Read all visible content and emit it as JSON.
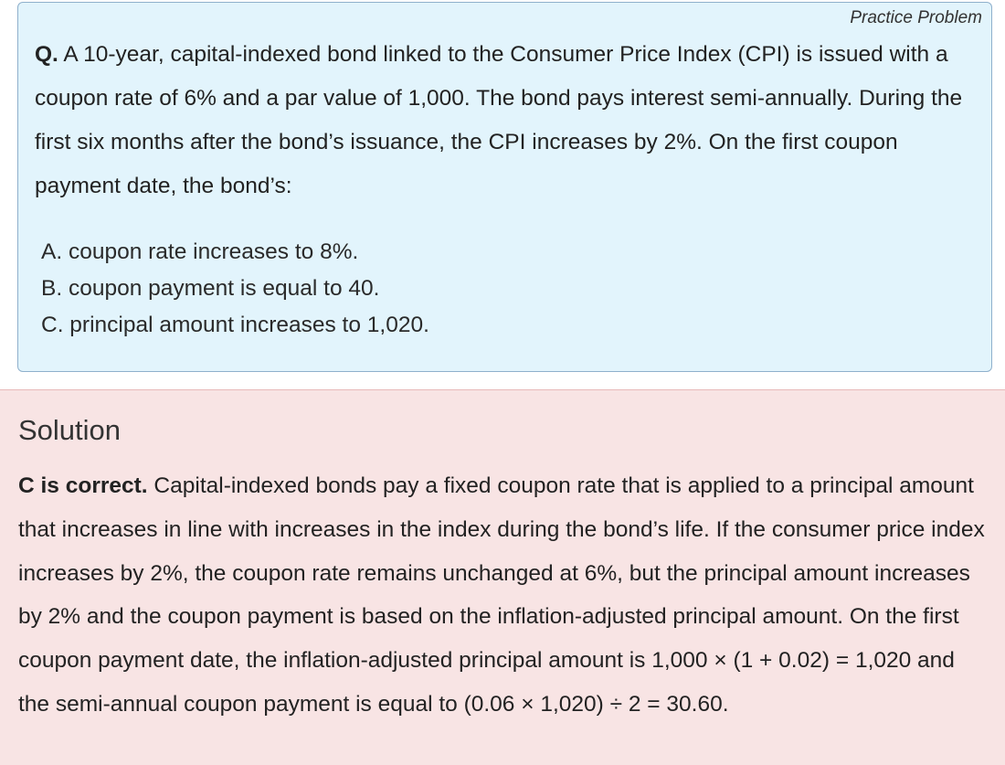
{
  "problem": {
    "tag": "Practice Problem",
    "question_label": "Q.",
    "question_text": " A 10-year, capital-indexed bond linked to the Consumer Price Index (CPI) is issued with a coupon rate of 6% and a par value of 1,000. The bond pays interest semi-annually. During the first six months after the bond’s issuance, the CPI increases by 2%. On the first coupon payment date, the bond’s:",
    "options": [
      "A. coupon rate increases to 8%.",
      "B. coupon payment is equal to 40.",
      "C. principal amount increases to 1,020."
    ]
  },
  "solution": {
    "title": "Solution",
    "correct_label": "C is correct.",
    "text": " Capital-indexed bonds pay a fixed coupon rate that is applied to a principal amount that increases in line with increases in the index during the bond’s life. If the consumer price index increases by 2%, the coupon rate remains unchanged at 6%, but the principal amount increases by 2% and the coupon payment is based on the inflation-adjusted principal amount. On the first coupon payment date, the inflation-adjusted principal amount is 1,000 × (1 + 0.02) = 1,020 and the semi-annual coupon payment is equal to (0.06 × 1,020) ÷ 2 = 30.60."
  }
}
